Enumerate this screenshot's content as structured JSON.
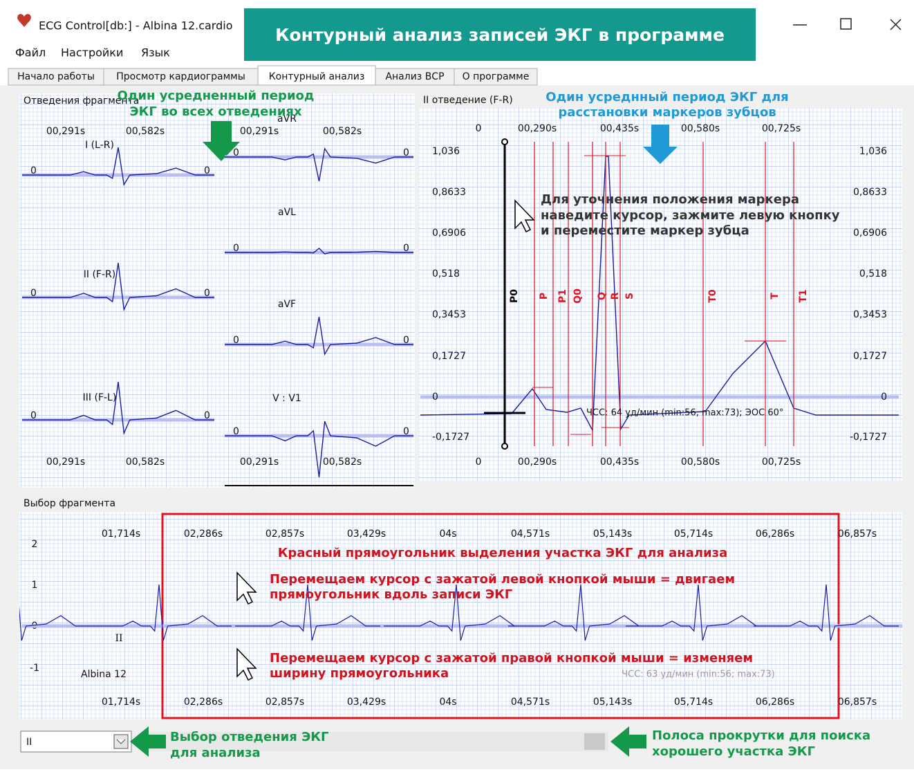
{
  "window": {
    "title": "ECG Control[db:] - Albina 12.cardio"
  },
  "banner": "Контурный анализ записей ЭКГ в программе",
  "menu": [
    "Файл",
    "Настройки",
    "Язык"
  ],
  "tabs": [
    "Начало работы",
    "Просмотр кардиограммы",
    "Контурный анализ",
    "Анализ ВСР",
    "О программе"
  ],
  "leads_panel": {
    "title": "Отведения фрагмента",
    "time_labels": [
      "00,291s",
      "00,582s"
    ],
    "zero": "0",
    "leads": [
      "I (L-R)",
      "II (F-R)",
      "III (F-L)",
      "aVR",
      "aVL",
      "aVF",
      "V : V1"
    ]
  },
  "detail_panel": {
    "title": "II отведение (F-R)",
    "time_labels": [
      "00,290s",
      "00,435s",
      "00,580s",
      "00,725s"
    ],
    "origin": "0",
    "y_labels": [
      "1,036",
      "0,8633",
      "0,6906",
      "0,518",
      "0,3453",
      "0,1727",
      "0",
      "-0,1727"
    ],
    "markers": [
      "P0",
      "P",
      "P1",
      "Q0",
      "Q",
      "R",
      "S",
      "T0",
      "T",
      "T1"
    ],
    "status": "ЧСС: 64 уд/мин (min:56, max:73); ЭОС 60°"
  },
  "fragment_panel": {
    "title": "Выбор фрагмента",
    "time_labels": [
      "01,714s",
      "02,286s",
      "02,857s",
      "03,429s",
      "04s",
      "04,571s",
      "05,143s",
      "05,714s",
      "06,286s",
      "06,857s"
    ],
    "y_labels": [
      "2",
      "1",
      "0",
      "-1"
    ],
    "lead": "II",
    "patient": "Albina 12",
    "status": "ЧСС: 63 уд/мин (min:56; max:73)"
  },
  "controls": {
    "lead_select": "II"
  },
  "annotations": {
    "leads_period": [
      "Один усредненный период",
      "ЭКГ во всех отведениях"
    ],
    "detail_period": [
      "Один усреднный период ЭКГ для",
      "расстановки маркеров зубцов"
    ],
    "marker_hint": [
      "Для уточнения положения маркера",
      "наведите курсор, зажмите левую кнопку",
      "и переместите маркер зубца"
    ],
    "rect_title": "Красный прямоугольник выделения участка ЭКГ для анализа",
    "move_hint": [
      "Перемещаем курсор с зажатой левой кнопкой мыши = двигаем",
      "прямоугольник вдоль записи ЭКГ"
    ],
    "width_hint": [
      "Перемещаем курсор с зажатой правой кнопкой мыши = изменяем",
      "ширину прямоугольника"
    ],
    "select_hint": [
      "Выбор отведения ЭКГ",
      "для анализа"
    ],
    "scroll_hint": [
      "Полоса прокрутки для поиска",
      "хорошего участка ЭКГ"
    ]
  }
}
